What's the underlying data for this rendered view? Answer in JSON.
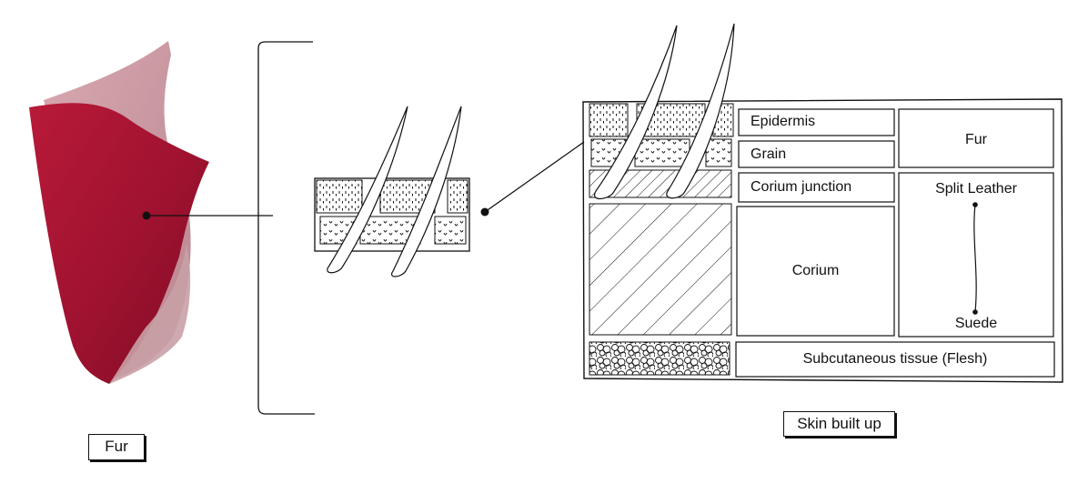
{
  "captions": {
    "fur": "Fur",
    "skin": "Skin built up"
  },
  "layers": {
    "epidermis": "Epidermis",
    "grain": "Grain",
    "corium_junction": "Corium junction",
    "corium": "Corium",
    "subcutaneous": "Subcutaneous tissue (Flesh)"
  },
  "products": {
    "fur": "Fur",
    "split_leather": "Split Leather",
    "suede": "Suede"
  },
  "colors": {
    "fur_red": "#a0142e",
    "fur_back": "#c98f9a",
    "ink": "#111111"
  }
}
